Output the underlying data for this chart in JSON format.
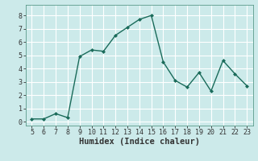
{
  "x": [
    5,
    6,
    7,
    8,
    9,
    10,
    11,
    12,
    13,
    14,
    15,
    16,
    17,
    18,
    19,
    20,
    21,
    22,
    23
  ],
  "y": [
    0.2,
    0.2,
    0.6,
    0.3,
    4.9,
    5.4,
    5.3,
    6.5,
    7.1,
    7.7,
    8.0,
    4.5,
    3.1,
    2.6,
    3.7,
    2.3,
    4.6,
    3.6,
    2.7
  ],
  "line_color": "#1a6b5a",
  "marker": "D",
  "marker_size": 2.0,
  "linewidth": 1.0,
  "xlabel": "Humidex (Indice chaleur)",
  "xlim": [
    4.5,
    23.5
  ],
  "ylim": [
    -0.3,
    8.8
  ],
  "yticks": [
    0,
    1,
    2,
    3,
    4,
    5,
    6,
    7,
    8
  ],
  "xticks": [
    5,
    6,
    7,
    8,
    9,
    10,
    11,
    12,
    13,
    14,
    15,
    16,
    17,
    18,
    19,
    20,
    21,
    22,
    23
  ],
  "bg_color": "#cceaea",
  "grid_color": "#ffffff",
  "tick_fontsize": 6,
  "xlabel_fontsize": 7.5,
  "spine_color": "#5a9a8a"
}
